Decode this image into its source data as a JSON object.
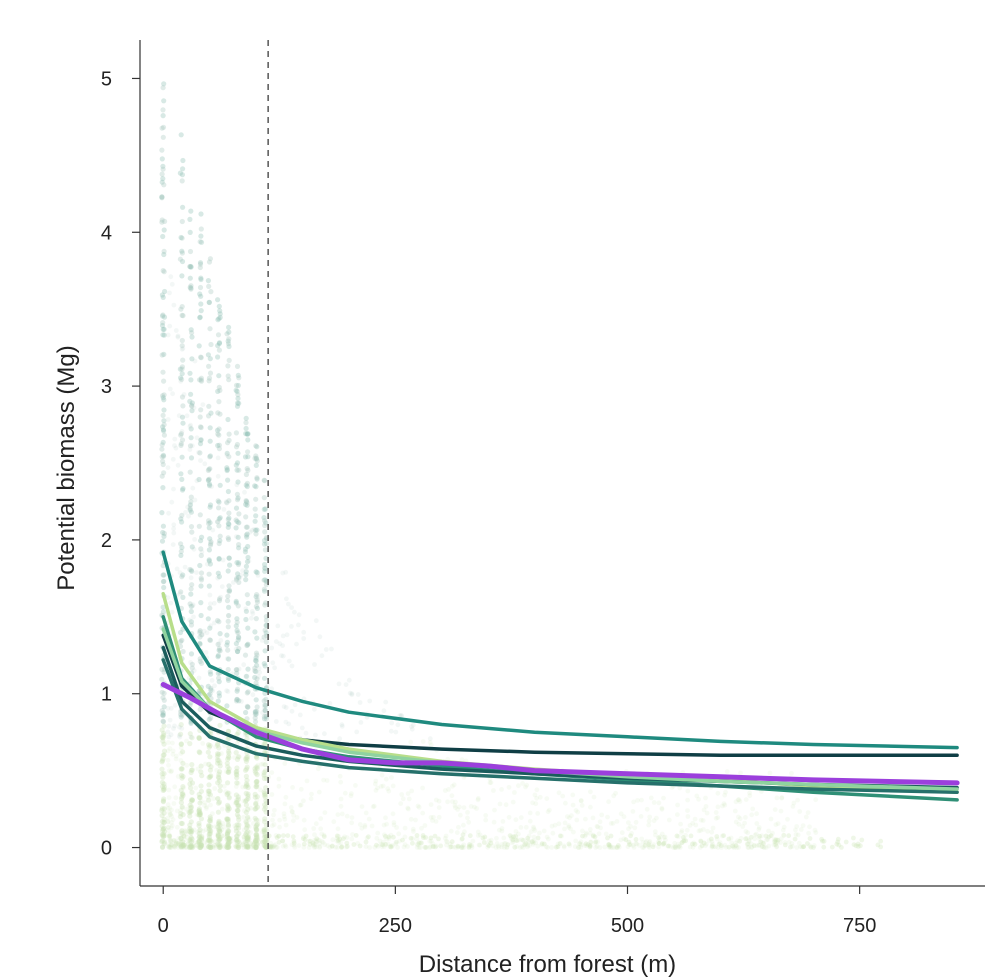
{
  "chart_data": {
    "type": "scatter",
    "title": "",
    "xlabel": "Distance from forest (m)",
    "ylabel": "Potential biomass (Mg)",
    "xlim": [
      -25,
      885
    ],
    "ylim": [
      -0.25,
      5.25
    ],
    "xticks": [
      {
        "value": 0,
        "label": "0"
      },
      {
        "value": 250,
        "label": "250"
      },
      {
        "value": 500,
        "label": "500"
      },
      {
        "value": 750,
        "label": "750"
      }
    ],
    "yticks": [
      {
        "value": 0,
        "label": "0"
      },
      {
        "value": 1,
        "label": "1"
      },
      {
        "value": 2,
        "label": "2"
      },
      {
        "value": 3,
        "label": "3"
      },
      {
        "value": 4,
        "label": "4"
      },
      {
        "value": 5,
        "label": "5"
      }
    ],
    "grid": false,
    "reference_line": {
      "x": 113,
      "style": "dashed",
      "color": "#555555"
    },
    "scatter": {
      "colors": [
        "#a8c9c0",
        "#c9e3b4",
        "#8fbfb4"
      ],
      "description_columns_x": [
        0,
        20,
        30,
        40,
        50,
        60,
        70,
        80,
        90,
        100,
        110
      ]
    },
    "series": [
      {
        "color": "#1f8a7f",
        "x": [
          0,
          20,
          50,
          100,
          150,
          200,
          300,
          400,
          500,
          600,
          700,
          855
        ],
        "y": [
          1.92,
          1.47,
          1.18,
          1.04,
          0.95,
          0.88,
          0.8,
          0.75,
          0.72,
          0.69,
          0.67,
          0.65
        ]
      },
      {
        "color": "#0f3e45",
        "x": [
          0,
          20,
          50,
          100,
          150,
          200,
          300,
          400,
          500,
          600,
          700,
          855
        ],
        "y": [
          1.38,
          1.05,
          0.88,
          0.76,
          0.7,
          0.67,
          0.64,
          0.62,
          0.61,
          0.6,
          0.6,
          0.6
        ]
      },
      {
        "color": "#2f8f76",
        "x": [
          0,
          20,
          50,
          100,
          150,
          200,
          300,
          400,
          500,
          600,
          700,
          855
        ],
        "y": [
          1.5,
          1.1,
          0.9,
          0.72,
          0.64,
          0.59,
          0.53,
          0.48,
          0.44,
          0.4,
          0.36,
          0.31
        ]
      },
      {
        "color": "#b8de8a",
        "x": [
          0,
          20,
          50,
          100,
          150,
          200,
          300,
          400,
          500,
          600,
          700,
          855
        ],
        "y": [
          1.65,
          1.2,
          0.95,
          0.78,
          0.7,
          0.64,
          0.56,
          0.51,
          0.47,
          0.44,
          0.4,
          0.36
        ]
      },
      {
        "color": "#1a5c5c",
        "x": [
          0,
          20,
          50,
          100,
          150,
          200,
          300,
          400,
          500,
          600,
          700,
          855
        ],
        "y": [
          1.3,
          0.95,
          0.78,
          0.66,
          0.6,
          0.56,
          0.51,
          0.48,
          0.45,
          0.43,
          0.41,
          0.39
        ]
      },
      {
        "color": "#26706b",
        "x": [
          0,
          20,
          50,
          100,
          150,
          200,
          300,
          400,
          500,
          600,
          700,
          855
        ],
        "y": [
          1.22,
          0.9,
          0.72,
          0.61,
          0.56,
          0.52,
          0.48,
          0.45,
          0.42,
          0.4,
          0.38,
          0.36
        ]
      },
      {
        "color": "#8fd3a0",
        "x": [
          0,
          20,
          50,
          100,
          150,
          200,
          300,
          400,
          500,
          600,
          700,
          855
        ],
        "y": [
          1.42,
          1.08,
          0.9,
          0.76,
          0.68,
          0.62,
          0.55,
          0.5,
          0.46,
          0.43,
          0.41,
          0.38
        ]
      },
      {
        "color": "#9b3fdc",
        "x": [
          0,
          30,
          60,
          100,
          150,
          200,
          250,
          300,
          350,
          400,
          500,
          600,
          700,
          855
        ],
        "y": [
          1.06,
          0.97,
          0.87,
          0.75,
          0.64,
          0.57,
          0.55,
          0.55,
          0.53,
          0.5,
          0.48,
          0.46,
          0.44,
          0.42
        ]
      }
    ]
  }
}
